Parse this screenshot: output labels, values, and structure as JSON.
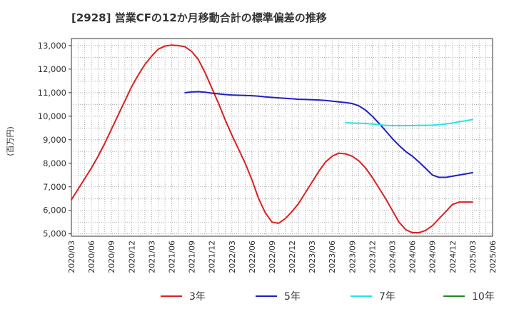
{
  "chart_data": {
    "type": "line",
    "title": "[2928]  営業CFの12か月移動合計の標準偏差の推移",
    "ylabel": "(百万円)",
    "xlabel": "",
    "ylim": [
      4900,
      13300
    ],
    "y_ticks": [
      "5,000",
      "6,000",
      "7,000",
      "8,000",
      "9,000",
      "10,000",
      "11,000",
      "12,000",
      "13,000"
    ],
    "y_tick_values": [
      5000,
      6000,
      7000,
      8000,
      9000,
      10000,
      11000,
      12000,
      13000
    ],
    "x_ticks": [
      "2020/03",
      "2020/06",
      "2020/09",
      "2020/12",
      "2021/03",
      "2021/06",
      "2021/09",
      "2021/12",
      "2022/03",
      "2022/06",
      "2022/09",
      "2022/12",
      "2023/03",
      "2023/06",
      "2023/09",
      "2023/12",
      "2024/03",
      "2024/06",
      "2024/09",
      "2024/12",
      "2025/03",
      "2025/06"
    ],
    "grid": true,
    "legend_position": "bottom",
    "series": [
      {
        "name": "3年",
        "color": "#dd1f1f",
        "x": [
          "2020/03",
          "2020/04",
          "2020/05",
          "2020/06",
          "2020/07",
          "2020/08",
          "2020/09",
          "2020/10",
          "2020/11",
          "2020/12",
          "2021/01",
          "2021/02",
          "2021/03",
          "2021/04",
          "2021/05",
          "2021/06",
          "2021/07",
          "2021/08",
          "2021/09",
          "2021/10",
          "2021/11",
          "2021/12",
          "2022/01",
          "2022/02",
          "2022/03",
          "2022/04",
          "2022/05",
          "2022/06",
          "2022/07",
          "2022/08",
          "2022/09",
          "2022/10",
          "2022/11",
          "2022/12",
          "2023/01",
          "2023/02",
          "2023/03",
          "2023/04",
          "2023/05",
          "2023/06",
          "2023/07",
          "2023/08",
          "2023/09",
          "2023/10",
          "2023/11",
          "2023/12",
          "2024/01",
          "2024/02",
          "2024/03",
          "2024/04",
          "2024/05",
          "2024/06",
          "2024/07",
          "2024/08",
          "2024/09",
          "2024/10",
          "2024/11",
          "2024/12",
          "2025/01",
          "2025/02",
          "2025/03"
        ],
        "values": [
          6450,
          6900,
          7350,
          7800,
          8300,
          8850,
          9450,
          10050,
          10650,
          11250,
          11750,
          12200,
          12550,
          12850,
          12980,
          13020,
          13000,
          12950,
          12750,
          12400,
          11850,
          11200,
          10550,
          9850,
          9200,
          8600,
          8000,
          7300,
          6500,
          5900,
          5500,
          5450,
          5650,
          5950,
          6300,
          6750,
          7200,
          7650,
          8050,
          8300,
          8430,
          8400,
          8300,
          8100,
          7800,
          7400,
          6950,
          6500,
          6000,
          5500,
          5180,
          5050,
          5050,
          5150,
          5350,
          5650,
          5950,
          6250,
          6350,
          6350,
          6350
        ]
      },
      {
        "name": "5年",
        "color": "#1f1fc8",
        "x": [
          "2021/08",
          "2021/09",
          "2021/10",
          "2021/11",
          "2021/12",
          "2022/01",
          "2022/02",
          "2022/03",
          "2022/04",
          "2022/05",
          "2022/06",
          "2022/07",
          "2022/08",
          "2022/09",
          "2022/10",
          "2022/11",
          "2022/12",
          "2023/01",
          "2023/02",
          "2023/03",
          "2023/04",
          "2023/05",
          "2023/06",
          "2023/07",
          "2023/08",
          "2023/09",
          "2023/10",
          "2023/11",
          "2023/12",
          "2024/01",
          "2024/02",
          "2024/03",
          "2024/04",
          "2024/05",
          "2024/06",
          "2024/07",
          "2024/08",
          "2024/09",
          "2024/10",
          "2024/11",
          "2024/12",
          "2025/01",
          "2025/02",
          "2025/03"
        ],
        "values": [
          11000,
          11030,
          11040,
          11020,
          10980,
          10950,
          10920,
          10900,
          10890,
          10880,
          10870,
          10850,
          10820,
          10800,
          10780,
          10760,
          10740,
          10720,
          10710,
          10700,
          10690,
          10670,
          10640,
          10610,
          10580,
          10540,
          10440,
          10260,
          10000,
          9700,
          9380,
          9050,
          8760,
          8500,
          8300,
          8050,
          7780,
          7500,
          7400,
          7400,
          7450,
          7500,
          7550,
          7600
        ]
      },
      {
        "name": "7年",
        "color": "#22e6e6",
        "x": [
          "2023/08",
          "2023/09",
          "2023/10",
          "2023/11",
          "2023/12",
          "2024/01",
          "2024/02",
          "2024/03",
          "2024/04",
          "2024/05",
          "2024/06",
          "2024/07",
          "2024/08",
          "2024/09",
          "2024/10",
          "2024/11",
          "2024/12",
          "2025/01",
          "2025/02",
          "2025/03"
        ],
        "values": [
          9720,
          9710,
          9700,
          9690,
          9670,
          9640,
          9610,
          9600,
          9600,
          9600,
          9600,
          9610,
          9610,
          9620,
          9640,
          9670,
          9710,
          9760,
          9810,
          9860
        ]
      },
      {
        "name": "10年",
        "color": "#1f8a1f",
        "x": [],
        "values": []
      }
    ]
  }
}
